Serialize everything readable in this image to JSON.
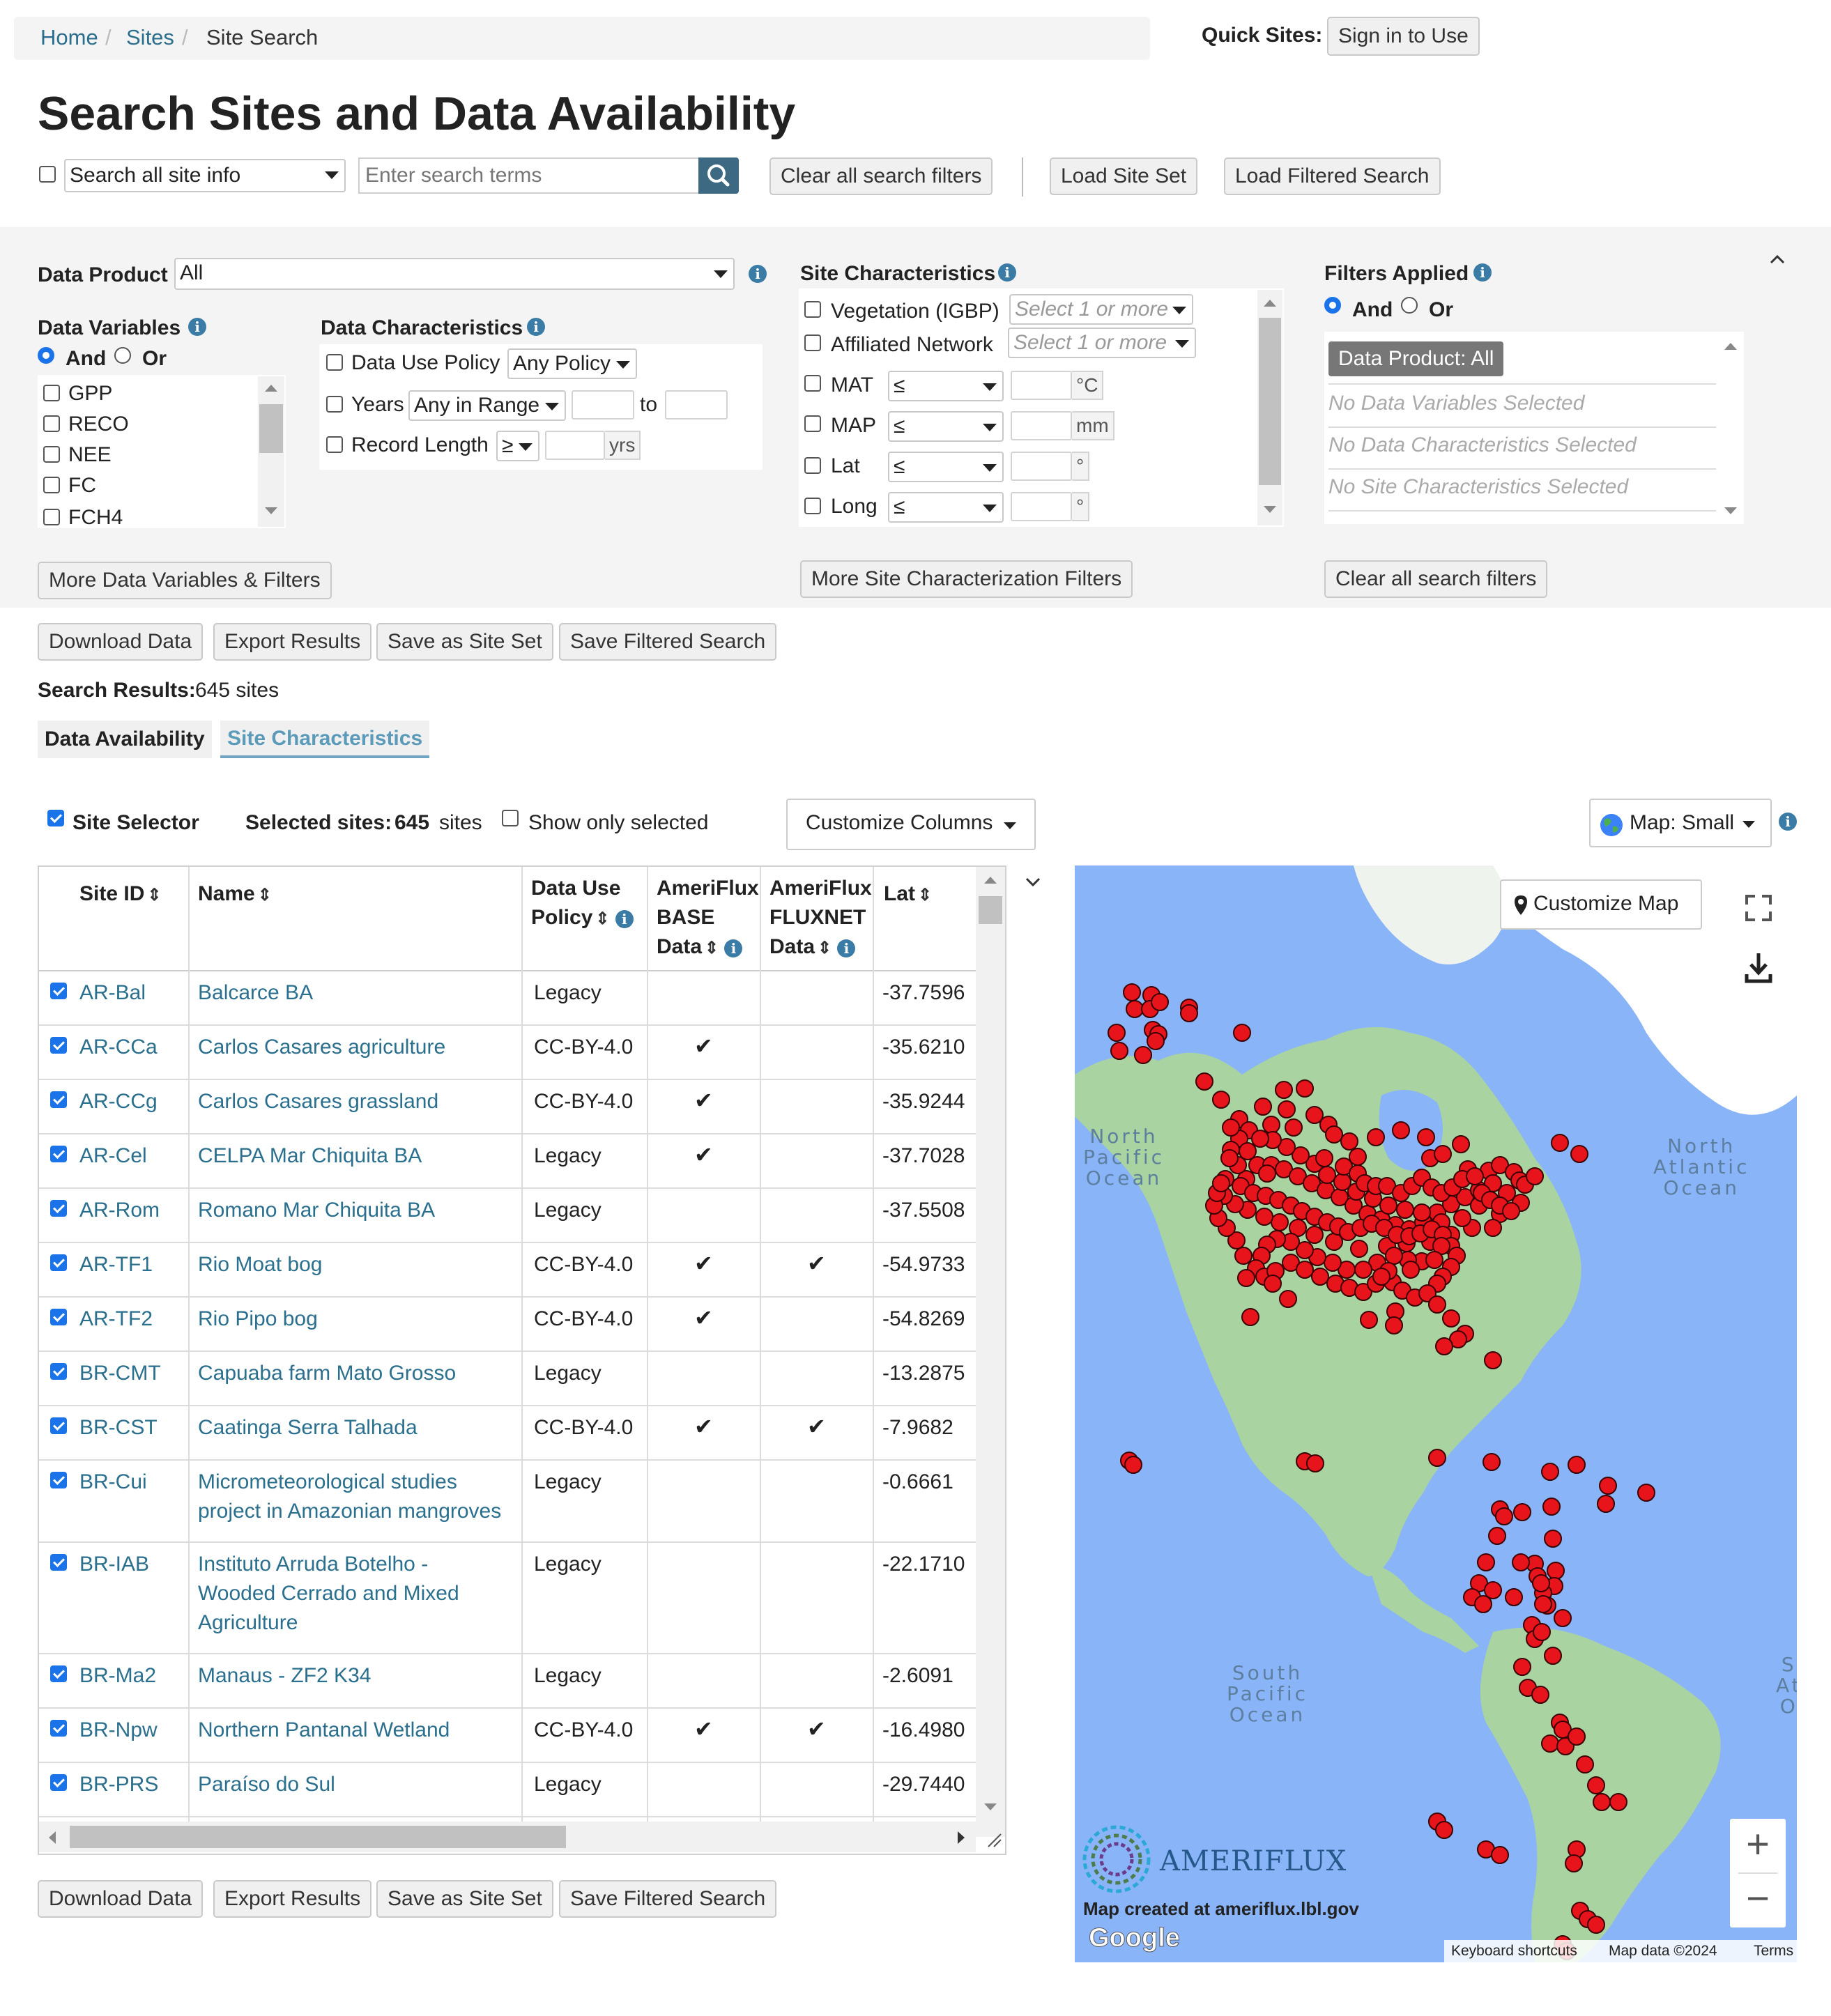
{
  "breadcrumb": {
    "home": "Home",
    "sites": "Sites",
    "current": "Site Search",
    "sep": "/"
  },
  "quick_sites": {
    "label": "Quick Sites:",
    "button": "Sign in to Use"
  },
  "page_title": "Search Sites and Data Availability",
  "search": {
    "scope_select": "Search all site info",
    "placeholder": "Enter search terms",
    "clear_button": "Clear all search filters",
    "load_site_set": "Load Site Set",
    "load_filtered": "Load Filtered Search"
  },
  "filters": {
    "data_product_label": "Data Product",
    "data_product_value": "All",
    "data_variables_label": "Data Variables",
    "and_label": "And",
    "or_label": "Or",
    "variables": [
      "GPP",
      "RECO",
      "NEE",
      "FC",
      "FCH4"
    ],
    "data_characteristics_label": "Data Characteristics",
    "data_use_policy_label": "Data Use Policy",
    "data_use_policy_value": "Any Policy",
    "years_label": "Years",
    "years_value": "Any in Range",
    "to_label": "to",
    "record_length_label": "Record Length",
    "record_length_op": "≥",
    "yrs_unit": "yrs",
    "more_variables_button": "More Data Variables & Filters",
    "site_characteristics_label": "Site Characteristics",
    "vegetation_label": "Vegetation (IGBP)",
    "affiliated_label": "Affiliated Network",
    "select_placeholder": "Select 1 or more",
    "mat_label": "MAT",
    "map_label": "MAP",
    "lat_label": "Lat",
    "long_label": "Long",
    "op_le": "≤",
    "unit_c": "°C",
    "unit_mm": "mm",
    "unit_deg": "°",
    "more_site_button": "More Site Characterization Filters",
    "filters_applied_label": "Filters Applied",
    "applied_tag": "Data Product: All",
    "applied_none": [
      "No Data Variables Selected",
      "No Data Characteristics Selected",
      "No Site Characteristics Selected"
    ],
    "clear_button": "Clear all search filters"
  },
  "actions": {
    "download": "Download Data",
    "export": "Export Results",
    "save_set": "Save as Site Set",
    "save_filtered": "Save Filtered Search"
  },
  "results": {
    "label": "Search Results:",
    "count": "645 sites",
    "tab_availability": "Data Availability",
    "tab_characteristics": "Site Characteristics",
    "site_selector": "Site Selector",
    "selected_label": "Selected sites:",
    "selected_count": "645",
    "selected_unit": "sites",
    "show_only_selected": "Show only selected",
    "customize_columns": "Customize Columns",
    "map_size": "Map: Small"
  },
  "table": {
    "headers": {
      "site_id": "Site ID",
      "name": "Name",
      "policy_1": "Data Use",
      "policy_2": "Policy",
      "base_1": "AmeriFlux",
      "base_2": "BASE",
      "base_3": "Data",
      "fluxnet_1": "AmeriFlux",
      "fluxnet_2": "FLUXNET",
      "fluxnet_3": "Data",
      "lat": "Lat"
    },
    "check_glyph": "✔",
    "rows": [
      {
        "id": "AR-Bal",
        "name": "Balcarce BA",
        "policy": "Legacy",
        "base": "",
        "fluxnet": "",
        "lat": "-37.7596"
      },
      {
        "id": "AR-CCa",
        "name": "Carlos Casares agriculture",
        "policy": "CC-BY-4.0",
        "base": "✔",
        "fluxnet": "",
        "lat": "-35.6210"
      },
      {
        "id": "AR-CCg",
        "name": "Carlos Casares grassland",
        "policy": "CC-BY-4.0",
        "base": "✔",
        "fluxnet": "",
        "lat": "-35.9244"
      },
      {
        "id": "AR-Cel",
        "name": "CELPA Mar Chiquita BA",
        "policy": "Legacy",
        "base": "✔",
        "fluxnet": "",
        "lat": "-37.7028"
      },
      {
        "id": "AR-Rom",
        "name": "Romano Mar Chiquita BA",
        "policy": "Legacy",
        "base": "",
        "fluxnet": "",
        "lat": "-37.5508"
      },
      {
        "id": "AR-TF1",
        "name": "Rio Moat bog",
        "policy": "CC-BY-4.0",
        "base": "✔",
        "fluxnet": "✔",
        "lat": "-54.9733"
      },
      {
        "id": "AR-TF2",
        "name": "Rio Pipo bog",
        "policy": "CC-BY-4.0",
        "base": "✔",
        "fluxnet": "",
        "lat": "-54.8269"
      },
      {
        "id": "BR-CMT",
        "name": "Capuaba farm Mato Grosso",
        "policy": "Legacy",
        "base": "",
        "fluxnet": "",
        "lat": "-13.2875"
      },
      {
        "id": "BR-CST",
        "name": "Caatinga Serra Talhada",
        "policy": "CC-BY-4.0",
        "base": "✔",
        "fluxnet": "✔",
        "lat": "-7.9682"
      },
      {
        "id": "BR-Cui",
        "name_lines": [
          "Micrometeorological studies",
          "project in Amazonian mangroves"
        ],
        "policy": "Legacy",
        "base": "",
        "fluxnet": "",
        "lat": "-0.6661"
      },
      {
        "id": "BR-IAB",
        "name_lines": [
          "Instituto Arruda Botelho -",
          "Wooded Cerrado and Mixed",
          "Agriculture"
        ],
        "policy": "Legacy",
        "base": "",
        "fluxnet": "",
        "lat": "-22.1710"
      },
      {
        "id": "BR-Ma2",
        "name": "Manaus - ZF2 K34",
        "policy": "Legacy",
        "base": "",
        "fluxnet": "",
        "lat": "-2.6091"
      },
      {
        "id": "BR-Npw",
        "name": "Northern Pantanal Wetland",
        "policy": "CC-BY-4.0",
        "base": "✔",
        "fluxnet": "✔",
        "lat": "-16.4980"
      },
      {
        "id": "BR-PRS",
        "name": "Paraíso do Sul",
        "policy": "Legacy",
        "base": "",
        "fluxnet": "",
        "lat": "-29.7440"
      }
    ]
  },
  "map": {
    "customize_button": "Customize Map",
    "ocean_np": [
      "North",
      "Pacific",
      "Ocean"
    ],
    "ocean_na": [
      "North",
      "Atlantic",
      "Ocean"
    ],
    "ocean_sp": [
      "South",
      "Pacific",
      "Ocean"
    ],
    "ocean_sa": [
      "S",
      "At",
      "O"
    ],
    "brand": "AMERIFLUX",
    "created": "Map created at ameriflux.lbl.gov",
    "google": "Google",
    "shortcuts": "Keyboard shortcuts",
    "mapdata": "Map data ©2024",
    "terms": "Terms",
    "zoom_in": "+",
    "zoom_out": "−",
    "colors": {
      "ocean": "#8ab4f8",
      "land": "#a9d3a0",
      "snow": "#ffffff",
      "marker": "#e8141b"
    }
  }
}
